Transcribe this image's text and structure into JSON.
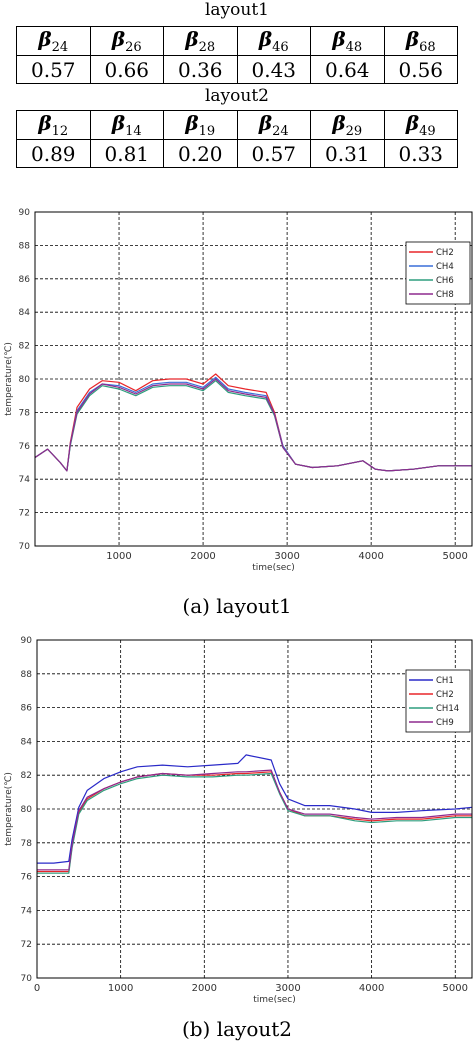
{
  "tables": [
    {
      "caption": "layout1",
      "headers": [
        {
          "sym": "β",
          "sub": "24"
        },
        {
          "sym": "β",
          "sub": "26"
        },
        {
          "sym": "β",
          "sub": "28"
        },
        {
          "sym": "β",
          "sub": "46"
        },
        {
          "sym": "β",
          "sub": "48"
        },
        {
          "sym": "β",
          "sub": "68"
        }
      ],
      "values": [
        "0.57",
        "0.66",
        "0.36",
        "0.43",
        "0.64",
        "0.56"
      ]
    },
    {
      "caption": "layout2",
      "headers": [
        {
          "sym": "β",
          "sub": "12"
        },
        {
          "sym": "β",
          "sub": "14"
        },
        {
          "sym": "β",
          "sub": "19"
        },
        {
          "sym": "β",
          "sub": "24"
        },
        {
          "sym": "β",
          "sub": "29"
        },
        {
          "sym": "β",
          "sub": "49"
        }
      ],
      "values": [
        "0.89",
        "0.81",
        "0.20",
        "0.57",
        "0.31",
        "0.33"
      ]
    }
  ],
  "chart_data": [
    {
      "type": "line",
      "caption": "(a) layout1",
      "xlabel": "time(sec)",
      "ylabel": "temperature(℃)",
      "xlim": [
        0,
        5200
      ],
      "ylim": [
        70,
        90
      ],
      "xticks": [
        1000,
        2000,
        3000,
        4000,
        5000
      ],
      "yticks": [
        70,
        72,
        74,
        76,
        78,
        80,
        82,
        84,
        86,
        88,
        90
      ],
      "grid": true,
      "legend_position": "top-right",
      "x": [
        0,
        150,
        300,
        380,
        420,
        500,
        650,
        800,
        1000,
        1200,
        1400,
        1600,
        1800,
        2000,
        2150,
        2300,
        2500,
        2750,
        2850,
        2950,
        3100,
        3300,
        3600,
        3900,
        4050,
        4200,
        4500,
        4800,
        5200
      ],
      "series": [
        {
          "name": "CH2",
          "color": "#e8262a",
          "values": [
            75.3,
            75.8,
            75.0,
            74.5,
            76.2,
            78.3,
            79.4,
            79.9,
            79.8,
            79.3,
            79.9,
            80.0,
            80.0,
            79.7,
            80.3,
            79.6,
            79.4,
            79.2,
            78.0,
            76.0,
            74.9,
            74.7,
            74.8,
            75.1,
            74.6,
            74.5,
            74.6,
            74.8,
            74.8
          ]
        },
        {
          "name": "CH4",
          "color": "#3a6fd8",
          "values": [
            75.3,
            75.8,
            75.0,
            74.5,
            76.1,
            78.1,
            79.2,
            79.7,
            79.6,
            79.2,
            79.7,
            79.8,
            79.8,
            79.5,
            80.1,
            79.4,
            79.2,
            79.0,
            77.9,
            76.0,
            74.9,
            74.7,
            74.8,
            75.1,
            74.6,
            74.5,
            74.6,
            74.8,
            74.8
          ]
        },
        {
          "name": "CH6",
          "color": "#2e9e7e",
          "values": [
            75.3,
            75.8,
            75.0,
            74.5,
            76.0,
            77.9,
            79.0,
            79.6,
            79.4,
            79.0,
            79.5,
            79.6,
            79.6,
            79.3,
            79.9,
            79.2,
            79.0,
            78.8,
            77.8,
            75.9,
            74.9,
            74.7,
            74.8,
            75.1,
            74.6,
            74.5,
            74.6,
            74.8,
            74.8
          ]
        },
        {
          "name": "CH8",
          "color": "#8e2a8e",
          "values": [
            75.3,
            75.8,
            75.0,
            74.5,
            76.1,
            78.0,
            79.1,
            79.7,
            79.5,
            79.1,
            79.6,
            79.7,
            79.7,
            79.4,
            80.0,
            79.3,
            79.1,
            78.9,
            77.9,
            75.9,
            74.9,
            74.7,
            74.8,
            75.1,
            74.6,
            74.5,
            74.6,
            74.8,
            74.8
          ]
        }
      ]
    },
    {
      "type": "line",
      "caption": "(b) layout2",
      "xlabel": "time(sec)",
      "ylabel": "temperature(℃)",
      "xlim": [
        0,
        5200
      ],
      "ylim": [
        70,
        90
      ],
      "xticks": [
        0,
        1000,
        2000,
        3000,
        4000,
        5000
      ],
      "yticks": [
        70,
        72,
        74,
        76,
        78,
        80,
        82,
        84,
        86,
        88,
        90
      ],
      "grid": true,
      "legend_position": "top-right",
      "x": [
        0,
        200,
        380,
        420,
        500,
        600,
        800,
        1000,
        1200,
        1500,
        1800,
        2100,
        2400,
        2500,
        2800,
        2900,
        3000,
        3200,
        3500,
        3800,
        4000,
        4300,
        4600,
        5000,
        5200
      ],
      "series": [
        {
          "name": "CH1",
          "color": "#2a2ac8",
          "values": [
            76.8,
            76.8,
            76.9,
            78.2,
            80.1,
            81.1,
            81.8,
            82.2,
            82.5,
            82.6,
            82.5,
            82.6,
            82.7,
            83.2,
            82.9,
            81.5,
            80.6,
            80.2,
            80.2,
            80.0,
            79.8,
            79.8,
            79.9,
            80.0,
            80.1
          ]
        },
        {
          "name": "CH2",
          "color": "#e8262a",
          "values": [
            76.3,
            76.3,
            76.3,
            77.8,
            79.8,
            80.6,
            81.2,
            81.6,
            81.9,
            82.1,
            82.0,
            82.0,
            82.1,
            82.1,
            82.2,
            81.0,
            80.0,
            79.6,
            79.6,
            79.4,
            79.3,
            79.4,
            79.4,
            79.6,
            79.6
          ]
        },
        {
          "name": "CH14",
          "color": "#2e9e7e",
          "values": [
            76.2,
            76.2,
            76.2,
            77.7,
            79.7,
            80.5,
            81.1,
            81.5,
            81.8,
            82.0,
            81.9,
            81.9,
            82.0,
            82.0,
            82.1,
            80.9,
            79.9,
            79.6,
            79.6,
            79.3,
            79.2,
            79.3,
            79.3,
            79.5,
            79.5
          ]
        },
        {
          "name": "CH9",
          "color": "#8e2a8e",
          "values": [
            76.4,
            76.4,
            76.4,
            77.9,
            79.9,
            80.7,
            81.2,
            81.6,
            81.9,
            82.1,
            82.0,
            82.1,
            82.2,
            82.2,
            82.3,
            81.0,
            80.0,
            79.7,
            79.7,
            79.5,
            79.4,
            79.5,
            79.5,
            79.7,
            79.7
          ]
        }
      ]
    }
  ]
}
